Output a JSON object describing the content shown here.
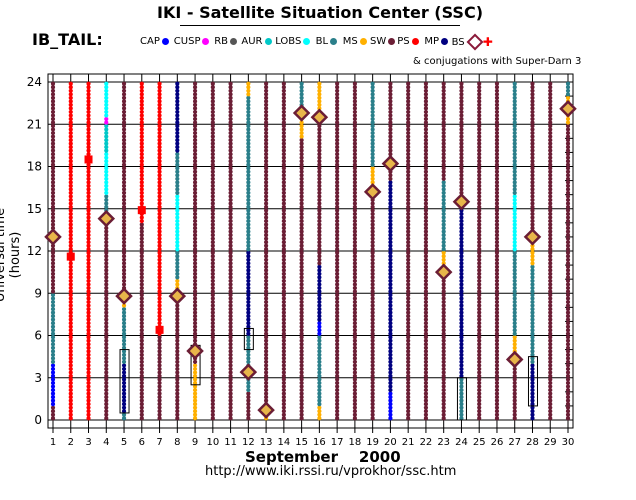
{
  "header": {
    "title": "IKI - Satellite Situation Center (SSC)",
    "subtitle": "IB_TAIL:",
    "conjugation_note": "& conjugations with Super-Darn 3"
  },
  "legend": [
    {
      "label": "CAP",
      "color": "#0000ff",
      "symbol": "dot"
    },
    {
      "label": "CUSP",
      "color": "#ff00ff",
      "symbol": "dot"
    },
    {
      "label": "RB",
      "color": "#555555",
      "symbol": "dot"
    },
    {
      "label": "AUR",
      "color": "#00c8c8",
      "symbol": "dot"
    },
    {
      "label": "LOBS",
      "color": "#00ffff",
      "symbol": "dot"
    },
    {
      "label": "BL",
      "color": "#2a7f8a",
      "symbol": "dot"
    },
    {
      "label": "MS",
      "color": "#ffb000",
      "symbol": "dot"
    },
    {
      "label": "SW",
      "color": "#6b1e35",
      "symbol": "dot"
    },
    {
      "label": "PS",
      "color": "#ff0000",
      "symbol": "dot"
    },
    {
      "label": "MP",
      "color": "#000080",
      "symbol": "dot"
    },
    {
      "label": "BS",
      "color": "#8b1a3a",
      "symbol": "diamond"
    },
    {
      "label": "",
      "color": "#ff0000",
      "symbol": "cross"
    }
  ],
  "footer": {
    "month": "September",
    "year": "2000",
    "url": "http://www.iki.rssi.ru/vprokhor/ssc.htm"
  },
  "chart_data": {
    "type": "scatter",
    "ylabel": "Universal time (hours)",
    "xlabel": "September   2000",
    "x": [
      1,
      2,
      3,
      4,
      5,
      6,
      7,
      8,
      9,
      10,
      11,
      12,
      13,
      14,
      15,
      16,
      17,
      18,
      19,
      20,
      21,
      22,
      23,
      24,
      25,
      26,
      27,
      28,
      29,
      30
    ],
    "xlim": [
      1,
      30
    ],
    "ylim": [
      0,
      24
    ],
    "yticks": [
      0,
      3,
      6,
      9,
      12,
      15,
      18,
      21,
      24
    ],
    "grid": true,
    "series_by_day": [
      {
        "day": 1,
        "segments": [
          [
            "SW",
            0,
            1
          ],
          [
            "CAP",
            1,
            4
          ],
          [
            "BL",
            4,
            9
          ],
          [
            "SW",
            9,
            24
          ]
        ]
      },
      {
        "day": 2,
        "segments": [
          [
            "PS",
            0,
            24
          ]
        ]
      },
      {
        "day": 3,
        "segments": [
          [
            "PS",
            0,
            24
          ]
        ]
      },
      {
        "day": 4,
        "segments": [
          [
            "SW",
            0,
            14
          ],
          [
            "BL",
            14,
            16
          ],
          [
            "LOBS",
            16,
            19
          ],
          [
            "AUR",
            19,
            21
          ],
          [
            "CUSP",
            21,
            21.5
          ],
          [
            "LOBS",
            21.5,
            24
          ]
        ]
      },
      {
        "day": 5,
        "segments": [
          [
            "BL",
            0,
            0.5
          ],
          [
            "MP",
            0.5,
            4
          ],
          [
            "BL",
            4,
            8
          ],
          [
            "MS",
            8,
            9
          ],
          [
            "SW",
            9,
            24
          ]
        ]
      },
      {
        "day": 6,
        "segments": [
          [
            "SW",
            0,
            14
          ],
          [
            "PS",
            14,
            24
          ]
        ]
      },
      {
        "day": 7,
        "segments": [
          [
            "SW",
            0,
            6
          ],
          [
            "PS",
            6,
            24
          ]
        ]
      },
      {
        "day": 8,
        "segments": [
          [
            "SW",
            0,
            9
          ],
          [
            "MS",
            9,
            10
          ],
          [
            "BL",
            10,
            12
          ],
          [
            "LOBS",
            12,
            16
          ],
          [
            "BL",
            16,
            19
          ],
          [
            "MP",
            19,
            24
          ]
        ]
      },
      {
        "day": 9,
        "segments": [
          [
            "MS",
            0,
            4
          ],
          [
            "SW",
            4,
            24
          ]
        ]
      },
      {
        "day": 10,
        "segments": [
          [
            "SW",
            0,
            24
          ]
        ]
      },
      {
        "day": 11,
        "segments": [
          [
            "SW",
            0,
            24
          ]
        ]
      },
      {
        "day": 12,
        "segments": [
          [
            "SW",
            0,
            2
          ],
          [
            "BL",
            2,
            6
          ],
          [
            "MP",
            6,
            12
          ],
          [
            "BL",
            12,
            23
          ],
          [
            "MS",
            23,
            24
          ]
        ]
      },
      {
        "day": 13,
        "segments": [
          [
            "MS",
            0,
            1
          ],
          [
            "SW",
            1,
            24
          ]
        ]
      },
      {
        "day": 14,
        "segments": [
          [
            "SW",
            0,
            24
          ]
        ]
      },
      {
        "day": 15,
        "segments": [
          [
            "SW",
            0,
            20
          ],
          [
            "MS",
            20,
            22
          ],
          [
            "BL",
            22,
            24
          ]
        ]
      },
      {
        "day": 16,
        "segments": [
          [
            "MS",
            0,
            1
          ],
          [
            "BL",
            1,
            6
          ],
          [
            "CAP",
            6,
            7
          ],
          [
            "MP",
            7,
            11
          ],
          [
            "SW",
            11,
            21
          ],
          [
            "MS",
            21,
            24
          ]
        ]
      },
      {
        "day": 17,
        "segments": [
          [
            "SW",
            0,
            24
          ]
        ]
      },
      {
        "day": 18,
        "segments": [
          [
            "SW",
            0,
            24
          ]
        ]
      },
      {
        "day": 19,
        "segments": [
          [
            "SW",
            0,
            16
          ],
          [
            "MS",
            16,
            18
          ],
          [
            "BL",
            18,
            24
          ]
        ]
      },
      {
        "day": 20,
        "segments": [
          [
            "CAP",
            0,
            2
          ],
          [
            "MP",
            2,
            17
          ],
          [
            "SW",
            17,
            24
          ]
        ]
      },
      {
        "day": 21,
        "segments": [
          [
            "SW",
            0,
            24
          ]
        ]
      },
      {
        "day": 22,
        "segments": [
          [
            "SW",
            0,
            24
          ]
        ]
      },
      {
        "day": 23,
        "segments": [
          [
            "SW",
            0,
            10
          ],
          [
            "MS",
            10,
            12
          ],
          [
            "BL",
            12,
            17
          ],
          [
            "SW",
            17,
            24
          ]
        ]
      },
      {
        "day": 24,
        "segments": [
          [
            "BL",
            0,
            3
          ],
          [
            "MP",
            3,
            15
          ],
          [
            "SW",
            15,
            24
          ]
        ]
      },
      {
        "day": 25,
        "segments": [
          [
            "SW",
            0,
            24
          ]
        ]
      },
      {
        "day": 26,
        "segments": [
          [
            "SW",
            0,
            24
          ]
        ]
      },
      {
        "day": 27,
        "segments": [
          [
            "SW",
            0,
            4
          ],
          [
            "MS",
            4,
            6
          ],
          [
            "BL",
            6,
            12
          ],
          [
            "LOBS",
            12,
            16
          ],
          [
            "BL",
            16,
            24
          ]
        ]
      },
      {
        "day": 28,
        "segments": [
          [
            "MP",
            0,
            4
          ],
          [
            "BL",
            4,
            11
          ],
          [
            "MS",
            11,
            13
          ],
          [
            "SW",
            13,
            24
          ]
        ]
      },
      {
        "day": 29,
        "segments": [
          [
            "SW",
            0,
            24
          ]
        ]
      },
      {
        "day": 30,
        "segments": [
          [
            "SW",
            0,
            21
          ],
          [
            "MS",
            21,
            23
          ],
          [
            "BL",
            23,
            24
          ]
        ]
      }
    ],
    "bow_shock_crossings": [
      {
        "day": 1,
        "ut": 13
      },
      {
        "day": 4,
        "ut": 14.3
      },
      {
        "day": 5,
        "ut": 8.8
      },
      {
        "day": 8,
        "ut": 8.8
      },
      {
        "day": 9,
        "ut": 4.9
      },
      {
        "day": 12,
        "ut": 3.4
      },
      {
        "day": 13,
        "ut": 0.7
      },
      {
        "day": 15,
        "ut": 21.8
      },
      {
        "day": 16,
        "ut": 21.5
      },
      {
        "day": 19,
        "ut": 16.2
      },
      {
        "day": 20,
        "ut": 18.2
      },
      {
        "day": 23,
        "ut": 10.5
      },
      {
        "day": 24,
        "ut": 15.5
      },
      {
        "day": 27,
        "ut": 4.3
      },
      {
        "day": 28,
        "ut": 13
      },
      {
        "day": 30,
        "ut": 22.1
      }
    ],
    "superdarn_conjugations": [
      {
        "day": 2,
        "ut": 11.6
      },
      {
        "day": 3,
        "ut": 18.5
      },
      {
        "day": 6,
        "ut": 14.9
      },
      {
        "day": 7,
        "ut": 6.4
      }
    ],
    "conjugation_boxes": [
      {
        "day": 5,
        "ut_start": 0.5,
        "ut_end": 5
      },
      {
        "day": 9,
        "ut_start": 2.5,
        "ut_end": 5.3
      },
      {
        "day": 12,
        "ut_start": 5,
        "ut_end": 6.5
      },
      {
        "day": 24,
        "ut_start": 0,
        "ut_end": 3
      },
      {
        "day": 28,
        "ut_start": 1,
        "ut_end": 4.5
      }
    ]
  }
}
